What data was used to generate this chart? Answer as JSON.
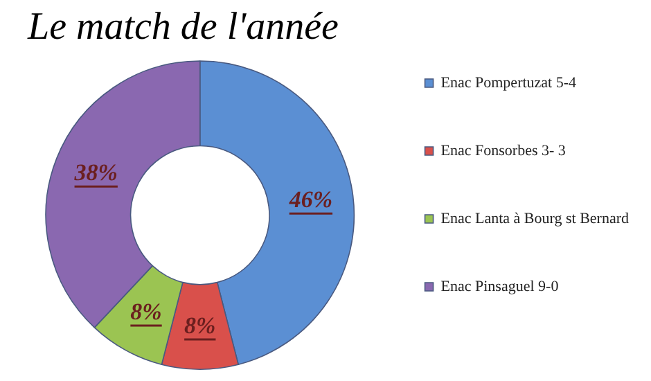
{
  "chart_data": {
    "type": "donut",
    "title": "Le match de l'année",
    "categories": [
      "Enac Pompertuzat 5-4",
      "Enac Fonsorbes 3- 3",
      "Enac Lanta à Bourg st Bernard",
      "Enac Pinsaguel 9-0"
    ],
    "values": [
      46,
      8,
      8,
      38
    ],
    "colors": [
      "#5b8fd3",
      "#d9504b",
      "#9bc452",
      "#8a68b0"
    ],
    "value_labels": [
      "46%",
      "8%",
      "8%",
      "38%"
    ],
    "legend": "right"
  }
}
